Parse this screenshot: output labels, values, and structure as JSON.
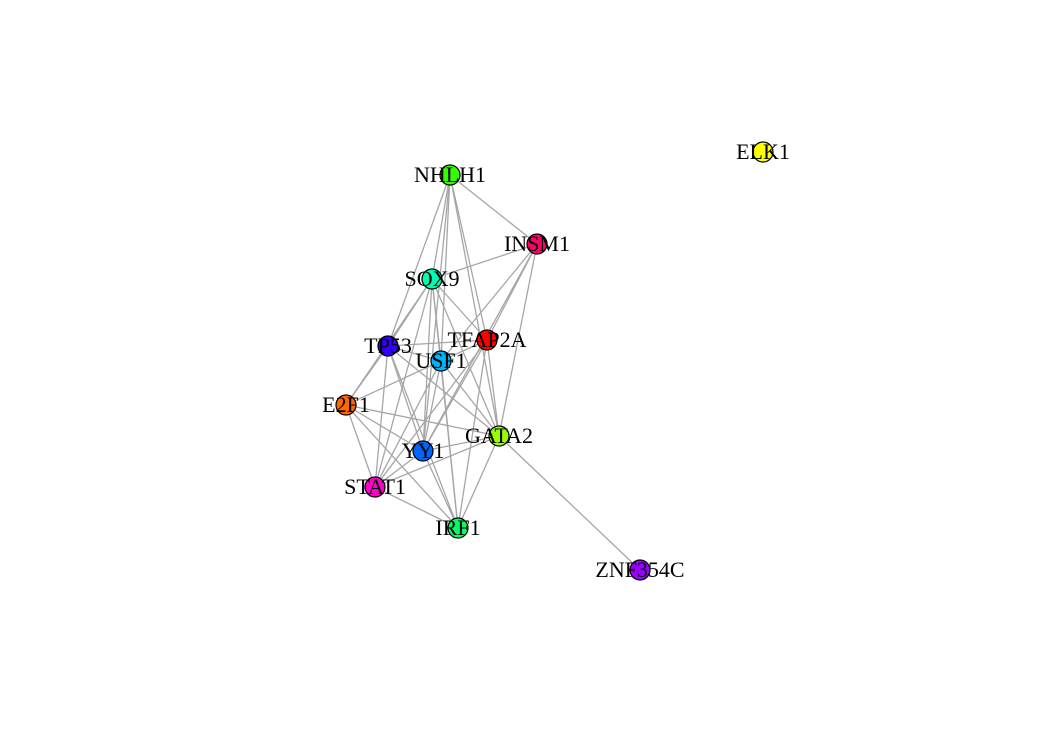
{
  "graph": {
    "type": "network",
    "nodes": [
      {
        "id": "ELK1",
        "label": "ELK1",
        "color": "#ffff00"
      },
      {
        "id": "NHLH1",
        "label": "NHLH1",
        "color": "#33ff00"
      },
      {
        "id": "INSM1",
        "label": "INSM1",
        "color": "#ff0066"
      },
      {
        "id": "SOX9",
        "label": "SOX9",
        "color": "#00ffb3"
      },
      {
        "id": "TFAP2A",
        "label": "TFAP2A",
        "color": "#ff0000"
      },
      {
        "id": "TP53",
        "label": "TP53",
        "color": "#3300ff"
      },
      {
        "id": "USF1",
        "label": "USF1",
        "color": "#00b3ff"
      },
      {
        "id": "E2F1",
        "label": "E2F1",
        "color": "#ff6600"
      },
      {
        "id": "GATA2",
        "label": "GATA2",
        "color": "#99ff00"
      },
      {
        "id": "YY1",
        "label": "YY1",
        "color": "#0066ff"
      },
      {
        "id": "STAT1",
        "label": "STAT1",
        "color": "#ff00cc"
      },
      {
        "id": "IRF1",
        "label": "IRF1",
        "color": "#00ff66"
      },
      {
        "id": "ZNF354C",
        "label": "ZNF354C",
        "color": "#9900ff"
      }
    ],
    "edges": [
      [
        "NHLH1",
        "INSM1"
      ],
      [
        "NHLH1",
        "SOX9"
      ],
      [
        "NHLH1",
        "TFAP2A"
      ],
      [
        "NHLH1",
        "USF1"
      ],
      [
        "NHLH1",
        "YY1"
      ],
      [
        "NHLH1",
        "GATA2"
      ],
      [
        "NHLH1",
        "TP53"
      ],
      [
        "INSM1",
        "SOX9"
      ],
      [
        "INSM1",
        "TFAP2A"
      ],
      [
        "INSM1",
        "USF1"
      ],
      [
        "INSM1",
        "GATA2"
      ],
      [
        "INSM1",
        "YY1"
      ],
      [
        "SOX9",
        "TP53"
      ],
      [
        "SOX9",
        "USF1"
      ],
      [
        "SOX9",
        "GATA2"
      ],
      [
        "SOX9",
        "YY1"
      ],
      [
        "SOX9",
        "STAT1"
      ],
      [
        "SOX9",
        "IRF1"
      ],
      [
        "SOX9",
        "TFAP2A"
      ],
      [
        "SOX9",
        "E2F1"
      ],
      [
        "TFAP2A",
        "TP53"
      ],
      [
        "TFAP2A",
        "USF1"
      ],
      [
        "TFAP2A",
        "GATA2"
      ],
      [
        "TFAP2A",
        "YY1"
      ],
      [
        "TFAP2A",
        "IRF1"
      ],
      [
        "TFAP2A",
        "STAT1"
      ],
      [
        "TP53",
        "USF1"
      ],
      [
        "TP53",
        "E2F1"
      ],
      [
        "TP53",
        "YY1"
      ],
      [
        "TP53",
        "STAT1"
      ],
      [
        "TP53",
        "IRF1"
      ],
      [
        "TP53",
        "GATA2"
      ],
      [
        "USF1",
        "E2F1"
      ],
      [
        "USF1",
        "GATA2"
      ],
      [
        "USF1",
        "YY1"
      ],
      [
        "USF1",
        "STAT1"
      ],
      [
        "USF1",
        "IRF1"
      ],
      [
        "E2F1",
        "YY1"
      ],
      [
        "E2F1",
        "STAT1"
      ],
      [
        "E2F1",
        "GATA2"
      ],
      [
        "E2F1",
        "IRF1"
      ],
      [
        "GATA2",
        "YY1"
      ],
      [
        "GATA2",
        "STAT1"
      ],
      [
        "GATA2",
        "IRF1"
      ],
      [
        "GATA2",
        "ZNF354C"
      ],
      [
        "YY1",
        "STAT1"
      ],
      [
        "YY1",
        "IRF1"
      ],
      [
        "STAT1",
        "IRF1"
      ]
    ]
  }
}
